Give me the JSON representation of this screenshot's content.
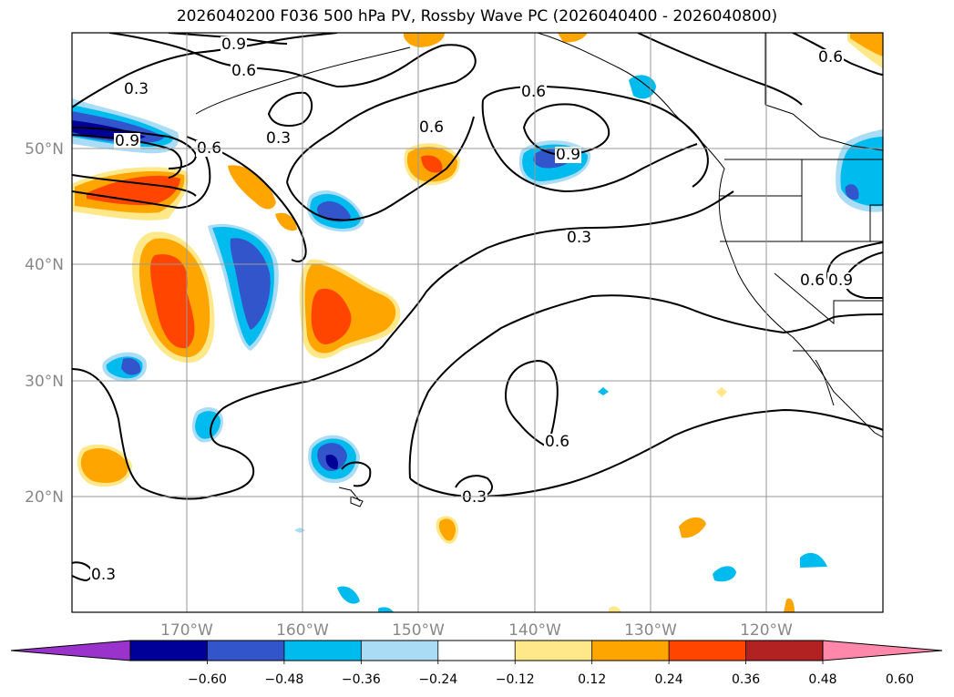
{
  "title": "2026040200 F036 500 hPa PV, Rossby Wave PC (2026040400 - 2026040800)",
  "grid": {
    "lat_labels": [
      "20°N",
      "30°N",
      "40°N",
      "50°N"
    ],
    "lon_labels": [
      "170°W",
      "160°W",
      "150°W",
      "140°W",
      "130°W",
      "120°W"
    ]
  },
  "contour_labels": [
    "0.9",
    "0.6",
    "0.3",
    "0.3",
    "0.9",
    "0.6",
    "0.6",
    "0.6",
    "0.9",
    "0.3",
    "0.6",
    "0.9",
    "0.6",
    "0.3",
    "0.3",
    "0.6"
  ],
  "colorbar": {
    "colors": [
      "#9933cc",
      "#000099",
      "#3355cc",
      "#00bbee",
      "#aaddf5",
      "#ffffff",
      "#ffe88a",
      "#ffa500",
      "#ff4500",
      "#b22222",
      "#ff88aa"
    ],
    "ticks": [
      "−0.60",
      "−0.48",
      "−0.36",
      "−0.24",
      "−0.12",
      "0.12",
      "0.24",
      "0.36",
      "0.48",
      "0.60"
    ]
  }
}
